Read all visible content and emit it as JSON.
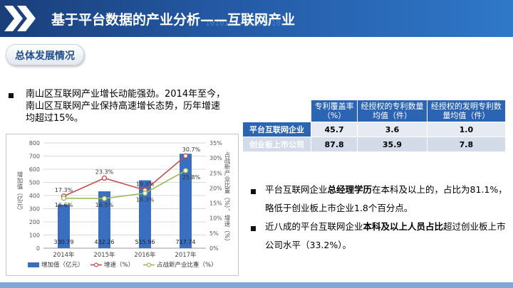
{
  "header": {
    "title": "基于平台数据的产业分析——互联网产业",
    "binary_text": "1010101 10101010"
  },
  "section": {
    "label": "总体发展情况"
  },
  "intro": {
    "text": "南山区互联网产业增长动能强劲。2014年至今，南山区互联网产业保持高速增长态势，历年增速均超过15%。"
  },
  "table": {
    "columns": [
      "专利覆盖率（%）",
      "经授权的专利数量均值（件）",
      "经授权的发明专利数量均值（件）"
    ],
    "rows": [
      {
        "label": "平台互联网企业",
        "values": [
          "45.7",
          "3.6",
          "1.0"
        ]
      },
      {
        "label": "创业板上市公司",
        "values": [
          "87.8",
          "35.9",
          "7.8"
        ]
      }
    ]
  },
  "bullets": [
    {
      "pre": "平台互联网企业",
      "bold": "总经理学历",
      "post": "在本科及以上的，占比为81.1%，略低于创业板上市企业1.8个百分点。"
    },
    {
      "pre": "近八成的平台互联网企业",
      "bold": "本科及以上人员占比",
      "post": "超过创业板上市公司水平（33.2%）。"
    }
  ],
  "chart_data": {
    "type": "bar",
    "categories": [
      "2014年",
      "2015年",
      "2016年",
      "2017年"
    ],
    "series": [
      {
        "name": "增加值（亿元）",
        "type": "bar",
        "axis": "left",
        "values": [
          330.79,
          432.26,
          515.96,
          717.74
        ],
        "labels": [
          "330.79",
          "432.26",
          "515.96",
          "717.74"
        ],
        "color": "#3a6fc0"
      },
      {
        "name": "增速（%）",
        "type": "line",
        "axis": "right",
        "values": [
          17.3,
          23.3,
          19.3,
          30.7
        ],
        "labels": [
          "17.3%",
          "23.3%",
          "19.3%",
          "30.7%"
        ],
        "color": "#c0504d"
      },
      {
        "name": "占战新产业比重（%）",
        "type": "line",
        "axis": "right",
        "values": [
          16.6,
          16.5,
          18.3,
          25.8
        ],
        "labels": [
          "16.6%",
          "16.5%",
          "18.3%",
          "25.8%"
        ],
        "color": "#9bbb59"
      }
    ],
    "ylabel": "增加值（亿元）",
    "y2label": "占战新产业比重（%）、增速（%）",
    "ylim": [
      0,
      800
    ],
    "y2lim": [
      0,
      35
    ],
    "yticks": [
      "0",
      "100",
      "200",
      "300",
      "400",
      "500",
      "600",
      "700",
      "800"
    ],
    "y2ticks": [
      "0%",
      "5%",
      "10%",
      "15%",
      "20%",
      "25%",
      "30%",
      "35%"
    ],
    "grid": true,
    "legend": "bottom"
  }
}
